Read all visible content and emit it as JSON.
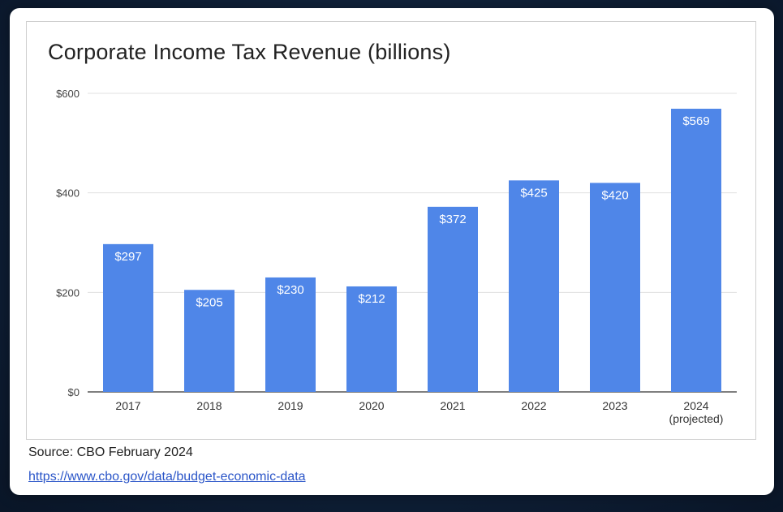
{
  "chart_data": {
    "type": "bar",
    "title": "Corporate Income Tax Revenue (billions)",
    "categories": [
      "2017",
      "2018",
      "2019",
      "2020",
      "2021",
      "2022",
      "2023",
      "2024"
    ],
    "category_sublabels": [
      "",
      "",
      "",
      "",
      "",
      "",
      "",
      "(projected)"
    ],
    "values": [
      297,
      205,
      230,
      212,
      372,
      425,
      420,
      569
    ],
    "data_labels": [
      "$297",
      "$205",
      "$230",
      "$212",
      "$372",
      "$425",
      "$420",
      "$569"
    ],
    "yticks": [
      0,
      200,
      400,
      600
    ],
    "ytick_labels": [
      "$0",
      "$200",
      "$400",
      "$600"
    ],
    "ylim": [
      0,
      600
    ],
    "xlabel": "",
    "ylabel": "",
    "grid": true,
    "bar_color": "#4f86e8"
  },
  "footer": {
    "source": "Source: CBO February 2024",
    "link": "https://www.cbo.gov/data/budget-economic-data"
  }
}
